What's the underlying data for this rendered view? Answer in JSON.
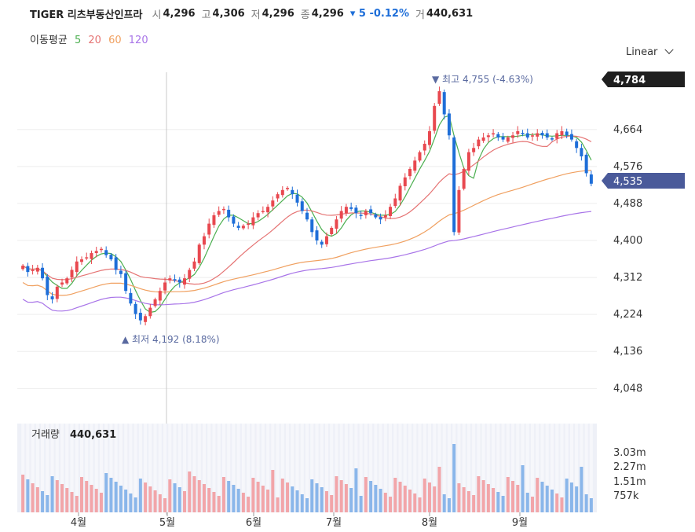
{
  "header": {
    "name": "TIGER 리츠부동산인프라",
    "open_label": "시",
    "open": "4,296",
    "high_label": "고",
    "high": "4,306",
    "low_label": "저",
    "low": "4,296",
    "close_label": "종",
    "close": "4,296",
    "change": "▾ 5 -0.12%",
    "volume_label": "거",
    "volume": "440,631"
  },
  "ma_legend": {
    "title": "이동평균",
    "periods": [
      "5",
      "20",
      "60",
      "120"
    ]
  },
  "scale_toggle": "Linear",
  "colors": {
    "up": "#e8484f",
    "down": "#1e6ed8",
    "ma5": "#4caf50",
    "ma20": "#e57373",
    "ma60": "#f0a060",
    "ma120": "#a874e8",
    "current_price_tag": "#4a5a9a",
    "high_tag": "#1f1f1f"
  },
  "chart_data": {
    "type": "candlestick",
    "price_axis": {
      "ticks": [
        "4,664",
        "4,576",
        "4,488",
        "4,400",
        "4,312",
        "4,224",
        "4,136",
        "4,048"
      ],
      "range": [
        4000,
        4800
      ]
    },
    "x_axis": {
      "ticks": [
        "4월",
        "5월",
        "6월",
        "7월",
        "8월",
        "9월"
      ]
    },
    "price_tags": {
      "max": "4,784",
      "last": "4,535"
    },
    "annotations": {
      "high": "▼ 최고 4,755 (-4.63%)",
      "low": "▲ 최저 4,192 (8.18%)"
    },
    "volume_panel": {
      "label": "거래량",
      "value": "440,631",
      "ticks": [
        "3.03m",
        "2.27m",
        "1.51m",
        "757k"
      ]
    },
    "closes": [
      4340,
      4325,
      4330,
      4335,
      4310,
      4270,
      4260,
      4290,
      4300,
      4310,
      4330,
      4350,
      4355,
      4360,
      4370,
      4375,
      4380,
      4365,
      4355,
      4330,
      4320,
      4280,
      4250,
      4225,
      4210,
      4220,
      4240,
      4260,
      4280,
      4300,
      4310,
      4305,
      4300,
      4310,
      4330,
      4350,
      4390,
      4410,
      4440,
      4460,
      4470,
      4475,
      4455,
      4440,
      4430,
      4435,
      4440,
      4455,
      4465,
      4470,
      4480,
      4495,
      4510,
      4520,
      4525,
      4510,
      4490,
      4470,
      4450,
      4420,
      4400,
      4390,
      4410,
      4430,
      4450,
      4470,
      4480,
      4475,
      4465,
      4460,
      4470,
      4465,
      4455,
      4450,
      4460,
      4480,
      4500,
      4530,
      4550,
      4570,
      4590,
      4610,
      4630,
      4660,
      4720,
      4755,
      4700,
      4650,
      4420,
      4520,
      4570,
      4610,
      4620,
      4640,
      4645,
      4650,
      4655,
      4645,
      4640,
      4645,
      4650,
      4660,
      4655,
      4645,
      4650,
      4655,
      4650,
      4645,
      4640,
      4655,
      4660,
      4650,
      4640,
      4620,
      4600,
      4560,
      4535
    ]
  }
}
